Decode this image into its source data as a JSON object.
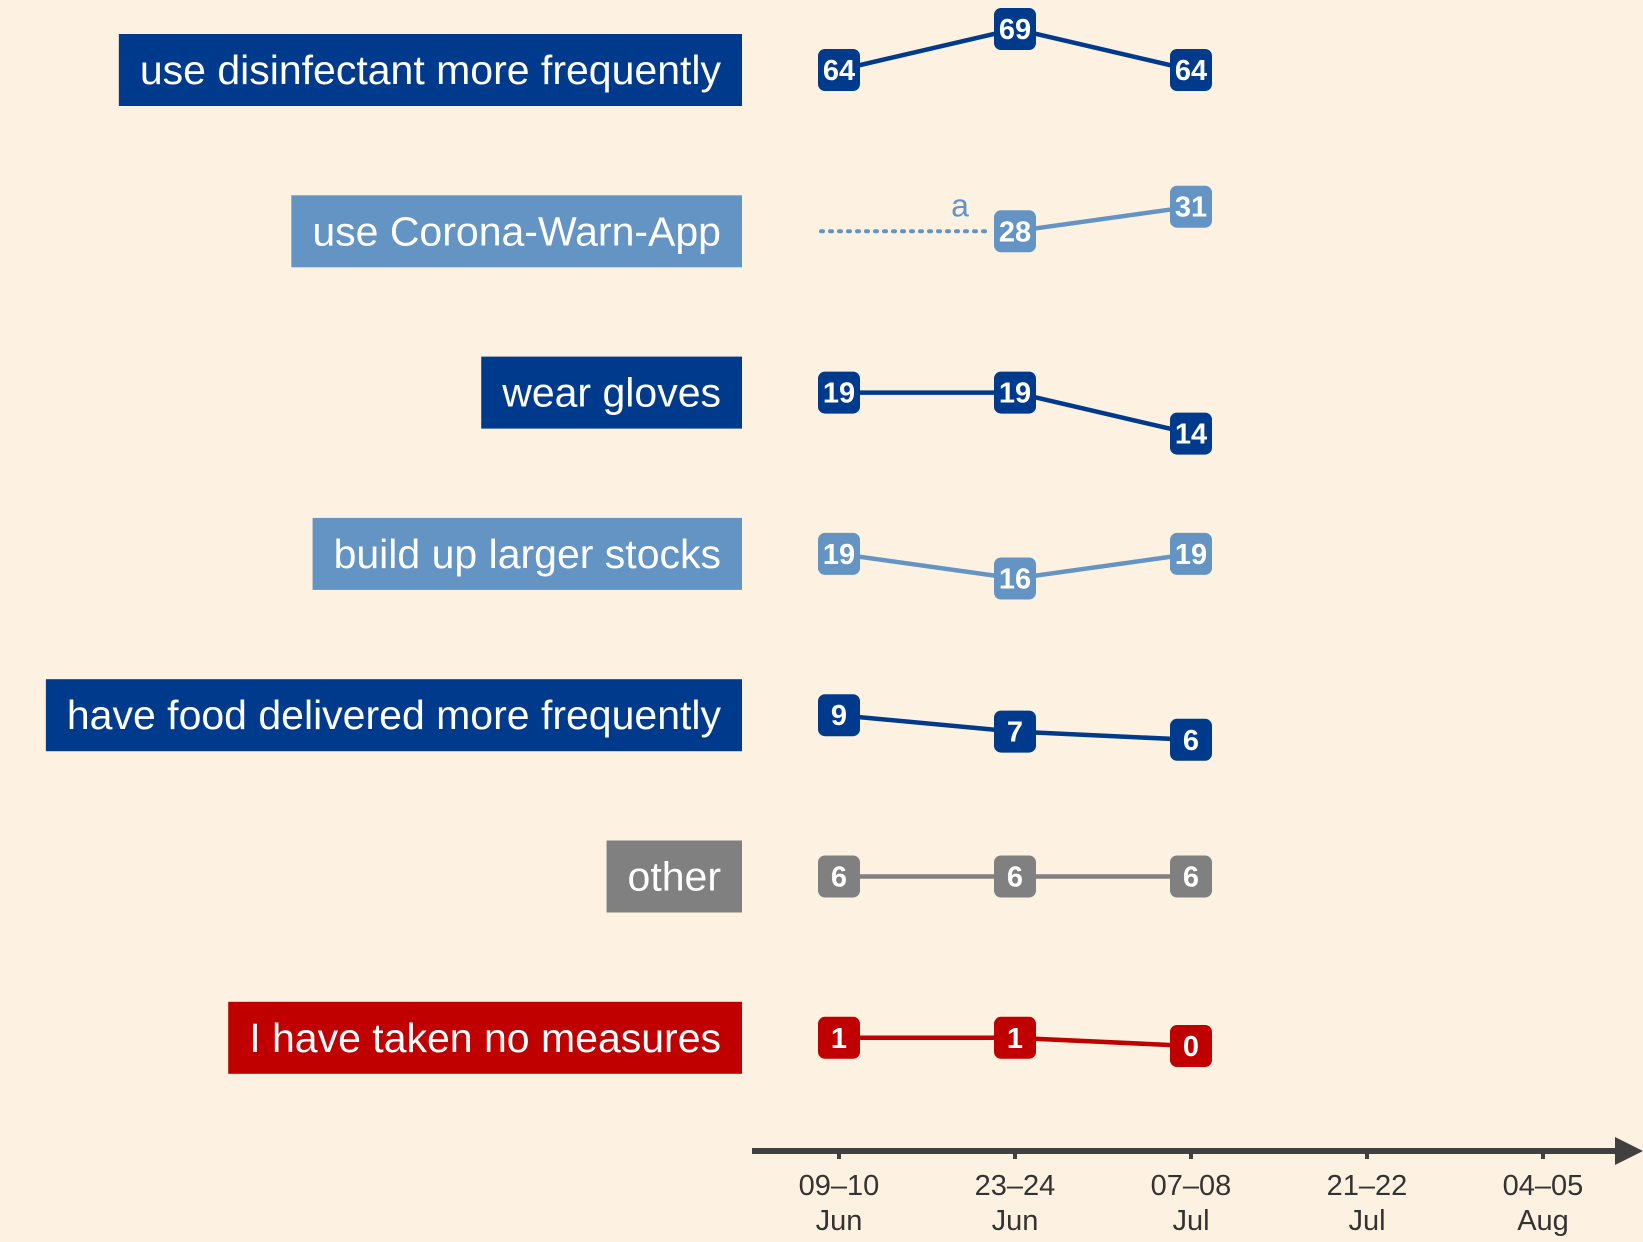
{
  "chart_data": {
    "type": "line",
    "categories": [
      "09–10\nJun",
      "23–24\nJun",
      "07–08\nJul",
      "21–22\nJul",
      "04–05\nAug"
    ],
    "series": [
      {
        "name": "use disinfectant more frequently",
        "color": "#003a8c",
        "values": [
          64,
          69,
          64,
          null,
          null
        ]
      },
      {
        "name": "use Corona-Warn-App",
        "color": "#6394c4",
        "values": [
          null,
          28,
          31,
          null,
          null
        ],
        "annotation": "a"
      },
      {
        "name": "wear gloves",
        "color": "#003a8c",
        "values": [
          19,
          19,
          14,
          null,
          null
        ]
      },
      {
        "name": "build up larger stocks",
        "color": "#6394c4",
        "values": [
          19,
          16,
          19,
          null,
          null
        ]
      },
      {
        "name": "have food delivered more frequently",
        "color": "#003a8c",
        "values": [
          9,
          7,
          6,
          null,
          null
        ]
      },
      {
        "name": "other",
        "color": "#808080",
        "values": [
          6,
          6,
          6,
          null,
          null
        ]
      },
      {
        "name": "I have taken no measures",
        "color": "#c00000",
        "values": [
          1,
          1,
          0,
          null,
          null
        ]
      }
    ],
    "axis_color": "#404040",
    "background": "#fdf2e1"
  }
}
